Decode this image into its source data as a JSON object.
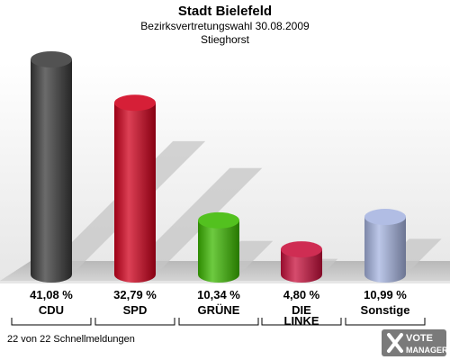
{
  "header": {
    "title": "Stadt Bielefeld",
    "subtitle": "Bezirksvertretungswahl 30.08.2009",
    "district": "Stieghorst"
  },
  "footer": {
    "status": "22 von 22 Schnellmeldungen"
  },
  "logo": {
    "line1": "VOTE",
    "line2": "MANAGER"
  },
  "chart_data": {
    "type": "bar",
    "title": "Stadt Bielefeld",
    "subtitle": "Bezirksvertretungswahl 30.08.2009",
    "categories": [
      "CDU",
      "SPD",
      "GRÜNE",
      "DIE LINKE",
      "Sonstige"
    ],
    "category_lines": [
      [
        "CDU"
      ],
      [
        "SPD"
      ],
      [
        "GRÜNE"
      ],
      [
        "DIE",
        "LINKE"
      ],
      [
        "Sonstige"
      ]
    ],
    "values": [
      41.08,
      32.79,
      10.34,
      4.8,
      10.99
    ],
    "value_labels": [
      "41,08 %",
      "32,79 %",
      "10,34 %",
      "4,80 %",
      "10,99 %"
    ],
    "colors": [
      "#3a3a3a",
      "#d0001c",
      "#3cb800",
      "#c8103c",
      "#a6b4e0"
    ],
    "ylim": [
      0,
      41.08
    ],
    "grid": false,
    "legend": "none"
  }
}
